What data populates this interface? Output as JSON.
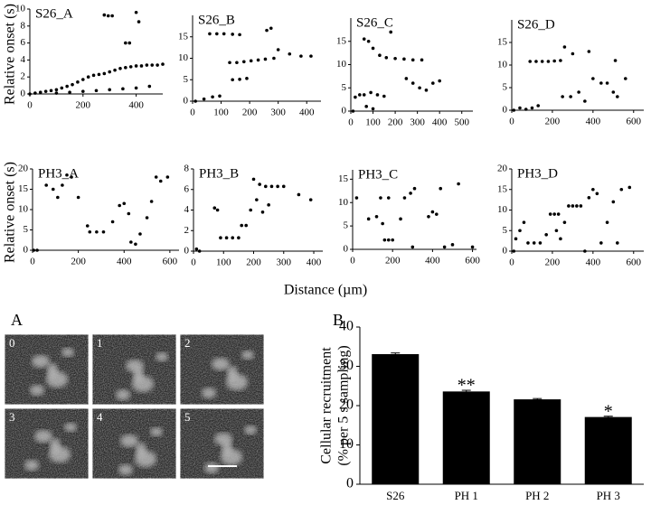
{
  "chart_data": [
    {
      "type": "scatter",
      "title": "S26_A",
      "ylabel": "Relative onset (s)",
      "xlim": [
        0,
        500
      ],
      "ylim": [
        0,
        10
      ],
      "xticks": [
        0,
        200,
        400
      ],
      "yticks": [
        0,
        2,
        4,
        6,
        8,
        10
      ],
      "color": "#000000",
      "x": [
        0,
        20,
        40,
        60,
        80,
        100,
        120,
        140,
        160,
        180,
        200,
        220,
        240,
        260,
        280,
        300,
        320,
        340,
        360,
        380,
        400,
        420,
        440,
        460,
        480,
        500,
        100,
        150,
        200,
        250,
        300,
        350,
        400,
        450,
        280,
        295,
        310,
        360,
        375,
        400,
        410
      ],
      "values": [
        0,
        0.1,
        0.2,
        0.3,
        0.4,
        0.5,
        0.7,
        0.9,
        1.1,
        1.4,
        1.7,
        2.0,
        2.2,
        2.3,
        2.4,
        2.6,
        2.8,
        3.0,
        3.1,
        3.2,
        3.3,
        3.3,
        3.4,
        3.4,
        3.4,
        3.5,
        0.1,
        0.2,
        0.3,
        0.4,
        0.5,
        0.6,
        0.7,
        0.9,
        9.3,
        9.2,
        9.2,
        6.0,
        6.0,
        9.6,
        8.5
      ]
    },
    {
      "type": "scatter",
      "title": "S26_B",
      "xlim": [
        0,
        450
      ],
      "ylim": [
        0,
        20
      ],
      "xticks": [
        0,
        100,
        200,
        300,
        400
      ],
      "yticks": [
        0,
        5,
        10,
        15
      ],
      "color": "#000000",
      "x": [
        10,
        40,
        70,
        95,
        60,
        85,
        110,
        140,
        165,
        130,
        155,
        180,
        205,
        230,
        255,
        285,
        140,
        165,
        190,
        260,
        275,
        300,
        340,
        380,
        415
      ],
      "values": [
        0,
        0.5,
        1,
        1.2,
        15.7,
        15.7,
        15.7,
        15.6,
        15.5,
        9,
        9,
        9.2,
        9.4,
        9.6,
        9.8,
        10,
        5,
        5.1,
        5.3,
        16.5,
        17,
        12,
        11,
        10.5,
        10.5
      ]
    },
    {
      "type": "scatter",
      "title": "S26_C",
      "xlim": [
        0,
        550
      ],
      "ylim": [
        0,
        20
      ],
      "xticks": [
        0,
        100,
        200,
        300,
        400,
        500
      ],
      "yticks": [
        0,
        5,
        10,
        15
      ],
      "color": "#000000",
      "x": [
        10,
        20,
        40,
        60,
        80,
        100,
        60,
        90,
        120,
        150,
        70,
        100,
        130,
        160,
        200,
        240,
        280,
        320,
        250,
        280,
        310,
        340,
        370,
        400,
        180
      ],
      "values": [
        0,
        3,
        3.5,
        15.5,
        15,
        13.5,
        3.5,
        4,
        3.5,
        3.2,
        1,
        0.5,
        12,
        11.5,
        11.3,
        11.2,
        11,
        11,
        7,
        6,
        5,
        4.5,
        6,
        6.5,
        17
      ]
    },
    {
      "type": "scatter",
      "title": "S26_D",
      "xlim": [
        0,
        650
      ],
      "ylim": [
        0,
        20
      ],
      "xticks": [
        0,
        200,
        400,
        600
      ],
      "yticks": [
        0,
        5,
        10,
        15
      ],
      "color": "#000000",
      "x": [
        10,
        40,
        70,
        100,
        130,
        90,
        120,
        150,
        180,
        210,
        240,
        260,
        300,
        380,
        250,
        290,
        330,
        360,
        400,
        440,
        470,
        500,
        520,
        510,
        560
      ],
      "values": [
        0,
        0.5,
        0.2,
        0.5,
        1,
        10.8,
        10.8,
        10.8,
        10.8,
        10.9,
        11,
        14,
        12.5,
        13,
        3,
        3,
        4,
        2,
        7,
        6,
        6,
        4,
        3,
        11,
        7
      ]
    },
    {
      "type": "scatter",
      "title": "PH3_A",
      "ylabel": "Relative onset (s)",
      "xlim": [
        0,
        640
      ],
      "ylim": [
        0,
        20
      ],
      "xticks": [
        0,
        200,
        400,
        600
      ],
      "yticks": [
        0,
        5,
        10,
        15,
        20
      ],
      "color": "#000000",
      "x": [
        5,
        20,
        60,
        90,
        110,
        130,
        150,
        170,
        200,
        240,
        250,
        280,
        310,
        350,
        380,
        400,
        420,
        430,
        450,
        470,
        500,
        520,
        540,
        560,
        590
      ],
      "values": [
        0,
        0,
        16,
        15,
        13,
        16,
        18.5,
        18,
        13,
        6,
        4.5,
        4.5,
        4.5,
        7,
        11,
        11.5,
        9,
        2,
        1.5,
        4,
        8,
        12,
        18,
        17,
        18
      ]
    },
    {
      "type": "scatter",
      "title": "PH3_B",
      "xlim": [
        0,
        430
      ],
      "ylim": [
        0,
        8
      ],
      "xticks": [
        0,
        100,
        200,
        300,
        400
      ],
      "yticks": [
        0,
        2,
        4,
        6,
        8
      ],
      "color": "#000000",
      "x": [
        10,
        20,
        70,
        80,
        90,
        110,
        130,
        150,
        160,
        175,
        190,
        200,
        210,
        220,
        240,
        260,
        280,
        300,
        230,
        250,
        350,
        390
      ],
      "values": [
        0.2,
        0,
        4.2,
        4,
        1.3,
        1.3,
        1.3,
        1.3,
        2.5,
        2.5,
        4,
        7,
        5,
        6.5,
        6.3,
        6.3,
        6.3,
        6.3,
        3.8,
        4.5,
        5.5,
        5
      ]
    },
    {
      "type": "scatter",
      "title": "PH3_C",
      "xlim": [
        0,
        620
      ],
      "ylim": [
        0,
        17
      ],
      "xticks": [
        0,
        200,
        400,
        600
      ],
      "yticks": [
        0,
        5,
        10,
        15
      ],
      "color": "#000000",
      "x": [
        20,
        80,
        120,
        150,
        160,
        180,
        200,
        140,
        180,
        240,
        260,
        290,
        310,
        300,
        380,
        400,
        420,
        440,
        460,
        500,
        530,
        600
      ],
      "values": [
        11,
        6.5,
        7,
        5.5,
        2,
        2,
        2,
        11,
        11,
        6.5,
        11,
        12,
        13,
        0.5,
        7,
        8,
        7.5,
        13,
        0.5,
        1,
        14,
        0.5
      ]
    },
    {
      "type": "scatter",
      "title": "PH3_D",
      "xlim": [
        0,
        650
      ],
      "ylim": [
        0,
        20
      ],
      "xticks": [
        0,
        200,
        400,
        600
      ],
      "yticks": [
        0,
        5,
        10,
        15,
        20
      ],
      "color": "#000000",
      "x": [
        10,
        20,
        40,
        60,
        80,
        110,
        140,
        170,
        190,
        210,
        230,
        220,
        240,
        260,
        280,
        300,
        320,
        340,
        380,
        400,
        420,
        360,
        440,
        470,
        500,
        540,
        580,
        520
      ],
      "values": [
        0,
        3,
        5,
        7,
        2,
        2,
        2,
        4,
        9,
        9,
        9,
        5,
        3,
        7,
        11,
        11,
        11,
        11,
        13,
        15,
        14,
        0,
        2,
        7,
        12,
        15,
        15.5,
        2
      ]
    },
    {
      "type": "bar",
      "panel": "B",
      "ylabel": [
        "Cellular recruitment",
        "(% per 5 s sampling)"
      ],
      "categories": [
        "S26",
        "PH 1",
        "PH 2",
        "PH 3"
      ],
      "values": [
        33.1,
        23.6,
        21.6,
        17.1
      ],
      "errors": [
        0.3,
        0.3,
        0.2,
        0.2
      ],
      "significance": [
        null,
        "**",
        null,
        "*"
      ],
      "ylim": [
        0,
        40
      ],
      "yticks": [
        0,
        10,
        20,
        30,
        40
      ],
      "color": "#000000"
    }
  ],
  "x_axis_label": "Distance (µm)",
  "images": {
    "panel": "A",
    "frames": [
      "0",
      "1",
      "2",
      "3",
      "4",
      "5"
    ]
  }
}
